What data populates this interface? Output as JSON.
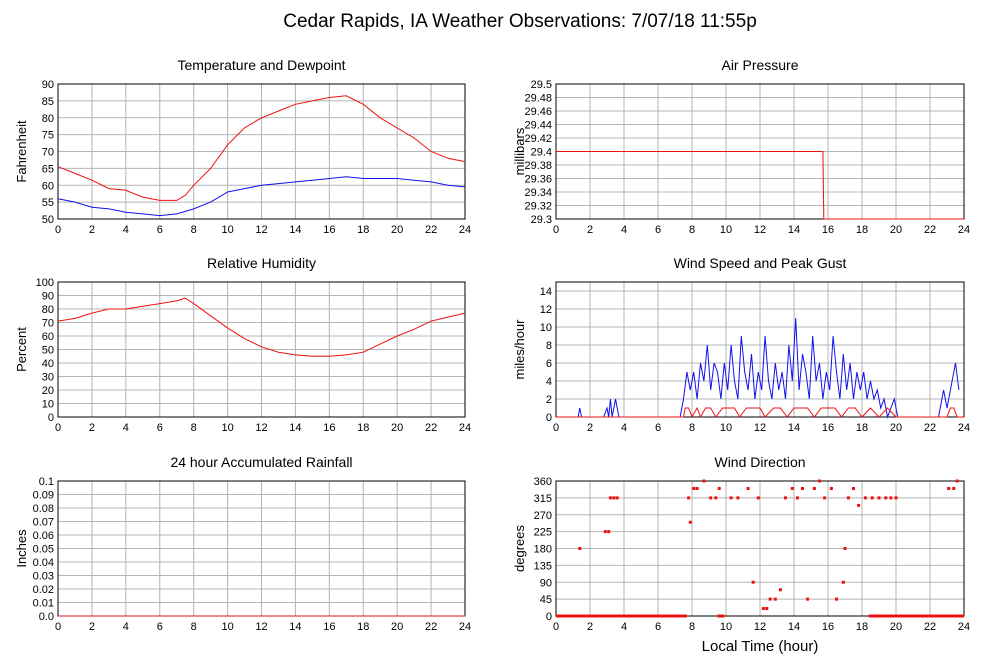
{
  "page_title": "Cedar Rapids, IA Weather Observations: 7/07/18 11:55p",
  "xlabel_bottom": "Local Time (hour)",
  "colors": {
    "red": "#ee1111",
    "blue": "#1111ee",
    "grid": "#b4b4b4",
    "frame": "#000000"
  },
  "chart_data": [
    {
      "id": "temperature",
      "type": "line",
      "title": "Temperature and Dewpoint",
      "ylabel": "Fahrenheit",
      "xlim": [
        0,
        24
      ],
      "ylim": [
        50,
        90
      ],
      "x_ticks": [
        "0",
        "2",
        "4",
        "6",
        "8",
        "10",
        "12",
        "14",
        "16",
        "18",
        "20",
        "22",
        "24"
      ],
      "y_ticks": [
        "50",
        "55",
        "60",
        "65",
        "70",
        "75",
        "80",
        "85",
        "90"
      ],
      "grid": true,
      "series": [
        {
          "color": "red",
          "x": [
            0,
            1,
            2,
            3,
            4,
            5,
            6,
            7,
            7.5,
            8,
            9,
            10,
            11,
            12,
            13,
            14,
            15,
            16,
            17,
            18,
            19,
            20,
            21,
            22,
            23,
            24
          ],
          "y": [
            65.5,
            63.5,
            61.5,
            59,
            58.5,
            56.5,
            55.5,
            55.5,
            57,
            60,
            65,
            72,
            77,
            80,
            82,
            84,
            85,
            86,
            86.5,
            84,
            80,
            77,
            74,
            70,
            68,
            67
          ]
        },
        {
          "color": "blue",
          "x": [
            0,
            1,
            2,
            3,
            4,
            5,
            6,
            7,
            8,
            9,
            10,
            11,
            12,
            13,
            14,
            15,
            16,
            17,
            18,
            19,
            20,
            21,
            22,
            23,
            24
          ],
          "y": [
            56,
            55,
            53.5,
            53,
            52,
            51.5,
            51,
            51.5,
            53,
            55,
            58,
            59,
            60,
            60.5,
            61,
            61.5,
            62,
            62.5,
            62,
            62,
            62,
            61.5,
            61,
            60,
            59.5
          ]
        }
      ]
    },
    {
      "id": "pressure",
      "type": "line",
      "title": "Air Pressure",
      "ylabel": "millibars",
      "xlim": [
        0,
        24
      ],
      "ylim": [
        29.3,
        29.5
      ],
      "x_ticks": [
        "0",
        "2",
        "4",
        "6",
        "8",
        "10",
        "12",
        "14",
        "16",
        "18",
        "20",
        "22",
        "24"
      ],
      "y_ticks": [
        "29.3",
        "29.32",
        "29.34",
        "29.36",
        "29.38",
        "29.4",
        "29.42",
        "29.44",
        "29.46",
        "29.48",
        "29.5"
      ],
      "grid": true,
      "series": [
        {
          "color": "red",
          "x": [
            0,
            15.7,
            15.75,
            16,
            24
          ],
          "y": [
            29.4,
            29.4,
            29.3,
            29.3,
            29.3
          ]
        }
      ]
    },
    {
      "id": "humidity",
      "type": "line",
      "title": "Relative Humidity",
      "ylabel": "Percent",
      "xlim": [
        0,
        24
      ],
      "ylim": [
        0,
        100
      ],
      "x_ticks": [
        "0",
        "2",
        "4",
        "6",
        "8",
        "10",
        "12",
        "14",
        "16",
        "18",
        "20",
        "22",
        "24"
      ],
      "y_ticks": [
        "0",
        "10",
        "20",
        "30",
        "40",
        "50",
        "60",
        "70",
        "80",
        "90",
        "100"
      ],
      "grid": true,
      "series": [
        {
          "color": "red",
          "x": [
            0,
            1,
            2,
            3,
            4,
            5,
            6,
            7,
            7.5,
            8,
            9,
            10,
            11,
            12,
            13,
            14,
            15,
            16,
            17,
            18,
            19,
            20,
            21,
            22,
            23,
            24
          ],
          "y": [
            71,
            73,
            77,
            80,
            80,
            82,
            84,
            86,
            88,
            84,
            75,
            66,
            58,
            52,
            48,
            46,
            45,
            45,
            46,
            48,
            54,
            60,
            65,
            71,
            74,
            77
          ]
        }
      ]
    },
    {
      "id": "wind",
      "type": "line",
      "title": "Wind Speed and Peak Gust",
      "ylabel": "miles/hour",
      "xlim": [
        0,
        24
      ],
      "ylim": [
        0,
        15
      ],
      "x_ticks": [
        "0",
        "2",
        "4",
        "6",
        "8",
        "10",
        "12",
        "14",
        "16",
        "18",
        "20",
        "22",
        "24"
      ],
      "y_ticks": [
        "0",
        "2",
        "4",
        "6",
        "8",
        "10",
        "12",
        "14"
      ],
      "grid": true,
      "series": [
        {
          "color": "blue",
          "x": [
            0,
            1.3,
            1.4,
            1.5,
            2.8,
            3,
            3.1,
            3.2,
            3.3,
            3.5,
            3.7,
            7.3,
            7.5,
            7.7,
            7.9,
            8.1,
            8.3,
            8.5,
            8.7,
            8.9,
            9.1,
            9.3,
            9.5,
            9.7,
            9.9,
            10.1,
            10.3,
            10.5,
            10.7,
            10.9,
            11.1,
            11.3,
            11.5,
            11.7,
            11.9,
            12.1,
            12.3,
            12.5,
            12.7,
            12.9,
            13.1,
            13.3,
            13.5,
            13.7,
            13.9,
            14.1,
            14.3,
            14.5,
            14.7,
            14.9,
            15.1,
            15.3,
            15.5,
            15.7,
            15.9,
            16.1,
            16.3,
            16.5,
            16.7,
            16.9,
            17.1,
            17.3,
            17.5,
            17.7,
            17.9,
            18.1,
            18.3,
            18.5,
            18.7,
            18.9,
            19.1,
            19.3,
            19.5,
            19.7,
            19.9,
            20.1,
            22.5,
            22.8,
            23,
            23.3,
            23.5,
            23.7
          ],
          "y": [
            0,
            0,
            1,
            0,
            0,
            1,
            0,
            2,
            0,
            2,
            0,
            0,
            2,
            5,
            3,
            5,
            2,
            6,
            4,
            8,
            3,
            6,
            5,
            2,
            6,
            3,
            8,
            4,
            2,
            9,
            5,
            3,
            7,
            2,
            5,
            3,
            9,
            4,
            2,
            6,
            3,
            5,
            2,
            8,
            4,
            11,
            3,
            7,
            5,
            2,
            9,
            4,
            6,
            2,
            5,
            3,
            9,
            5,
            2,
            7,
            3,
            6,
            2,
            5,
            3,
            5,
            2,
            4,
            2,
            3,
            1,
            2,
            0,
            1,
            2,
            0,
            0,
            3,
            1,
            4,
            6,
            3
          ]
        },
        {
          "color": "red",
          "x": [
            0,
            7.5,
            7.6,
            7.8,
            8,
            8.3,
            8.5,
            8.8,
            9.1,
            9.4,
            9.8,
            10.1,
            10.5,
            10.8,
            11.2,
            11.6,
            12,
            12.3,
            12.8,
            13.2,
            13.6,
            14,
            14.4,
            14.8,
            15.2,
            15.6,
            16,
            16.4,
            16.8,
            17.2,
            17.6,
            18,
            18.5,
            19,
            19.5,
            20,
            23,
            23.2,
            23.4,
            23.6,
            24
          ],
          "y": [
            0,
            0,
            1,
            1,
            0,
            1,
            0,
            1,
            1,
            0,
            1,
            1,
            1,
            0,
            1,
            1,
            1,
            0,
            1,
            1,
            0,
            1,
            1,
            1,
            0,
            1,
            1,
            1,
            0,
            1,
            1,
            0,
            1,
            0,
            1,
            0,
            0,
            1,
            1,
            0,
            0
          ]
        }
      ]
    },
    {
      "id": "rainfall",
      "type": "line",
      "title": "24 hour Accumulated Rainfall",
      "ylabel": "Inches",
      "xlim": [
        0,
        24
      ],
      "ylim": [
        0,
        0.1
      ],
      "x_ticks": [
        "0",
        "2",
        "4",
        "6",
        "8",
        "10",
        "12",
        "14",
        "16",
        "18",
        "20",
        "22",
        "24"
      ],
      "y_ticks": [
        "0.0",
        "0.01",
        "0.02",
        "0.03",
        "0.04",
        "0.05",
        "0.06",
        "0.07",
        "0.08",
        "0.09",
        "0.1"
      ],
      "grid": true,
      "series": [
        {
          "color": "red",
          "x": [
            0,
            24
          ],
          "y": [
            0,
            0
          ]
        }
      ]
    },
    {
      "id": "direction",
      "type": "scatter",
      "title": "Wind Direction",
      "ylabel": "degrees",
      "xlabel": "Local Time (hour)",
      "xlim": [
        0,
        24
      ],
      "ylim": [
        0,
        360
      ],
      "x_ticks": [
        "0",
        "2",
        "4",
        "6",
        "8",
        "10",
        "12",
        "14",
        "16",
        "18",
        "20",
        "22",
        "24"
      ],
      "y_ticks": [
        "0",
        "45",
        "90",
        "135",
        "180",
        "225",
        "270",
        "315",
        "360"
      ],
      "grid": true,
      "series": [
        {
          "color": "red",
          "x": [
            1.4,
            2.9,
            3.1,
            3.2,
            3.4,
            3.6,
            7.8,
            7.9,
            8.1,
            8.3,
            8.7,
            9.1,
            9.4,
            9.6,
            10.3,
            10.7,
            11.3,
            11.6,
            11.9,
            12.2,
            12.4,
            12.6,
            12.9,
            13.2,
            13.5,
            13.9,
            14.2,
            14.5,
            14.8,
            15.2,
            15.5,
            15.8,
            16.2,
            16.5,
            16.9,
            17.0,
            17.2,
            17.5,
            17.8,
            18.2,
            18.6,
            19.0,
            19.4,
            19.7,
            20.0,
            23.1,
            23.4,
            23.6
          ],
          "y": [
            180,
            225,
            225,
            315,
            315,
            315,
            315,
            250,
            340,
            340,
            360,
            315,
            315,
            340,
            315,
            315,
            340,
            90,
            315,
            20,
            20,
            45,
            45,
            70,
            315,
            340,
            315,
            340,
            45,
            340,
            360,
            315,
            340,
            45,
            90,
            180,
            315,
            340,
            295,
            315,
            315,
            315,
            315,
            315,
            315,
            340,
            340,
            360
          ]
        }
      ],
      "zero_bands": [
        [
          0,
          7.7
        ],
        [
          9.5,
          9.9
        ],
        [
          18.4,
          24
        ]
      ]
    }
  ]
}
